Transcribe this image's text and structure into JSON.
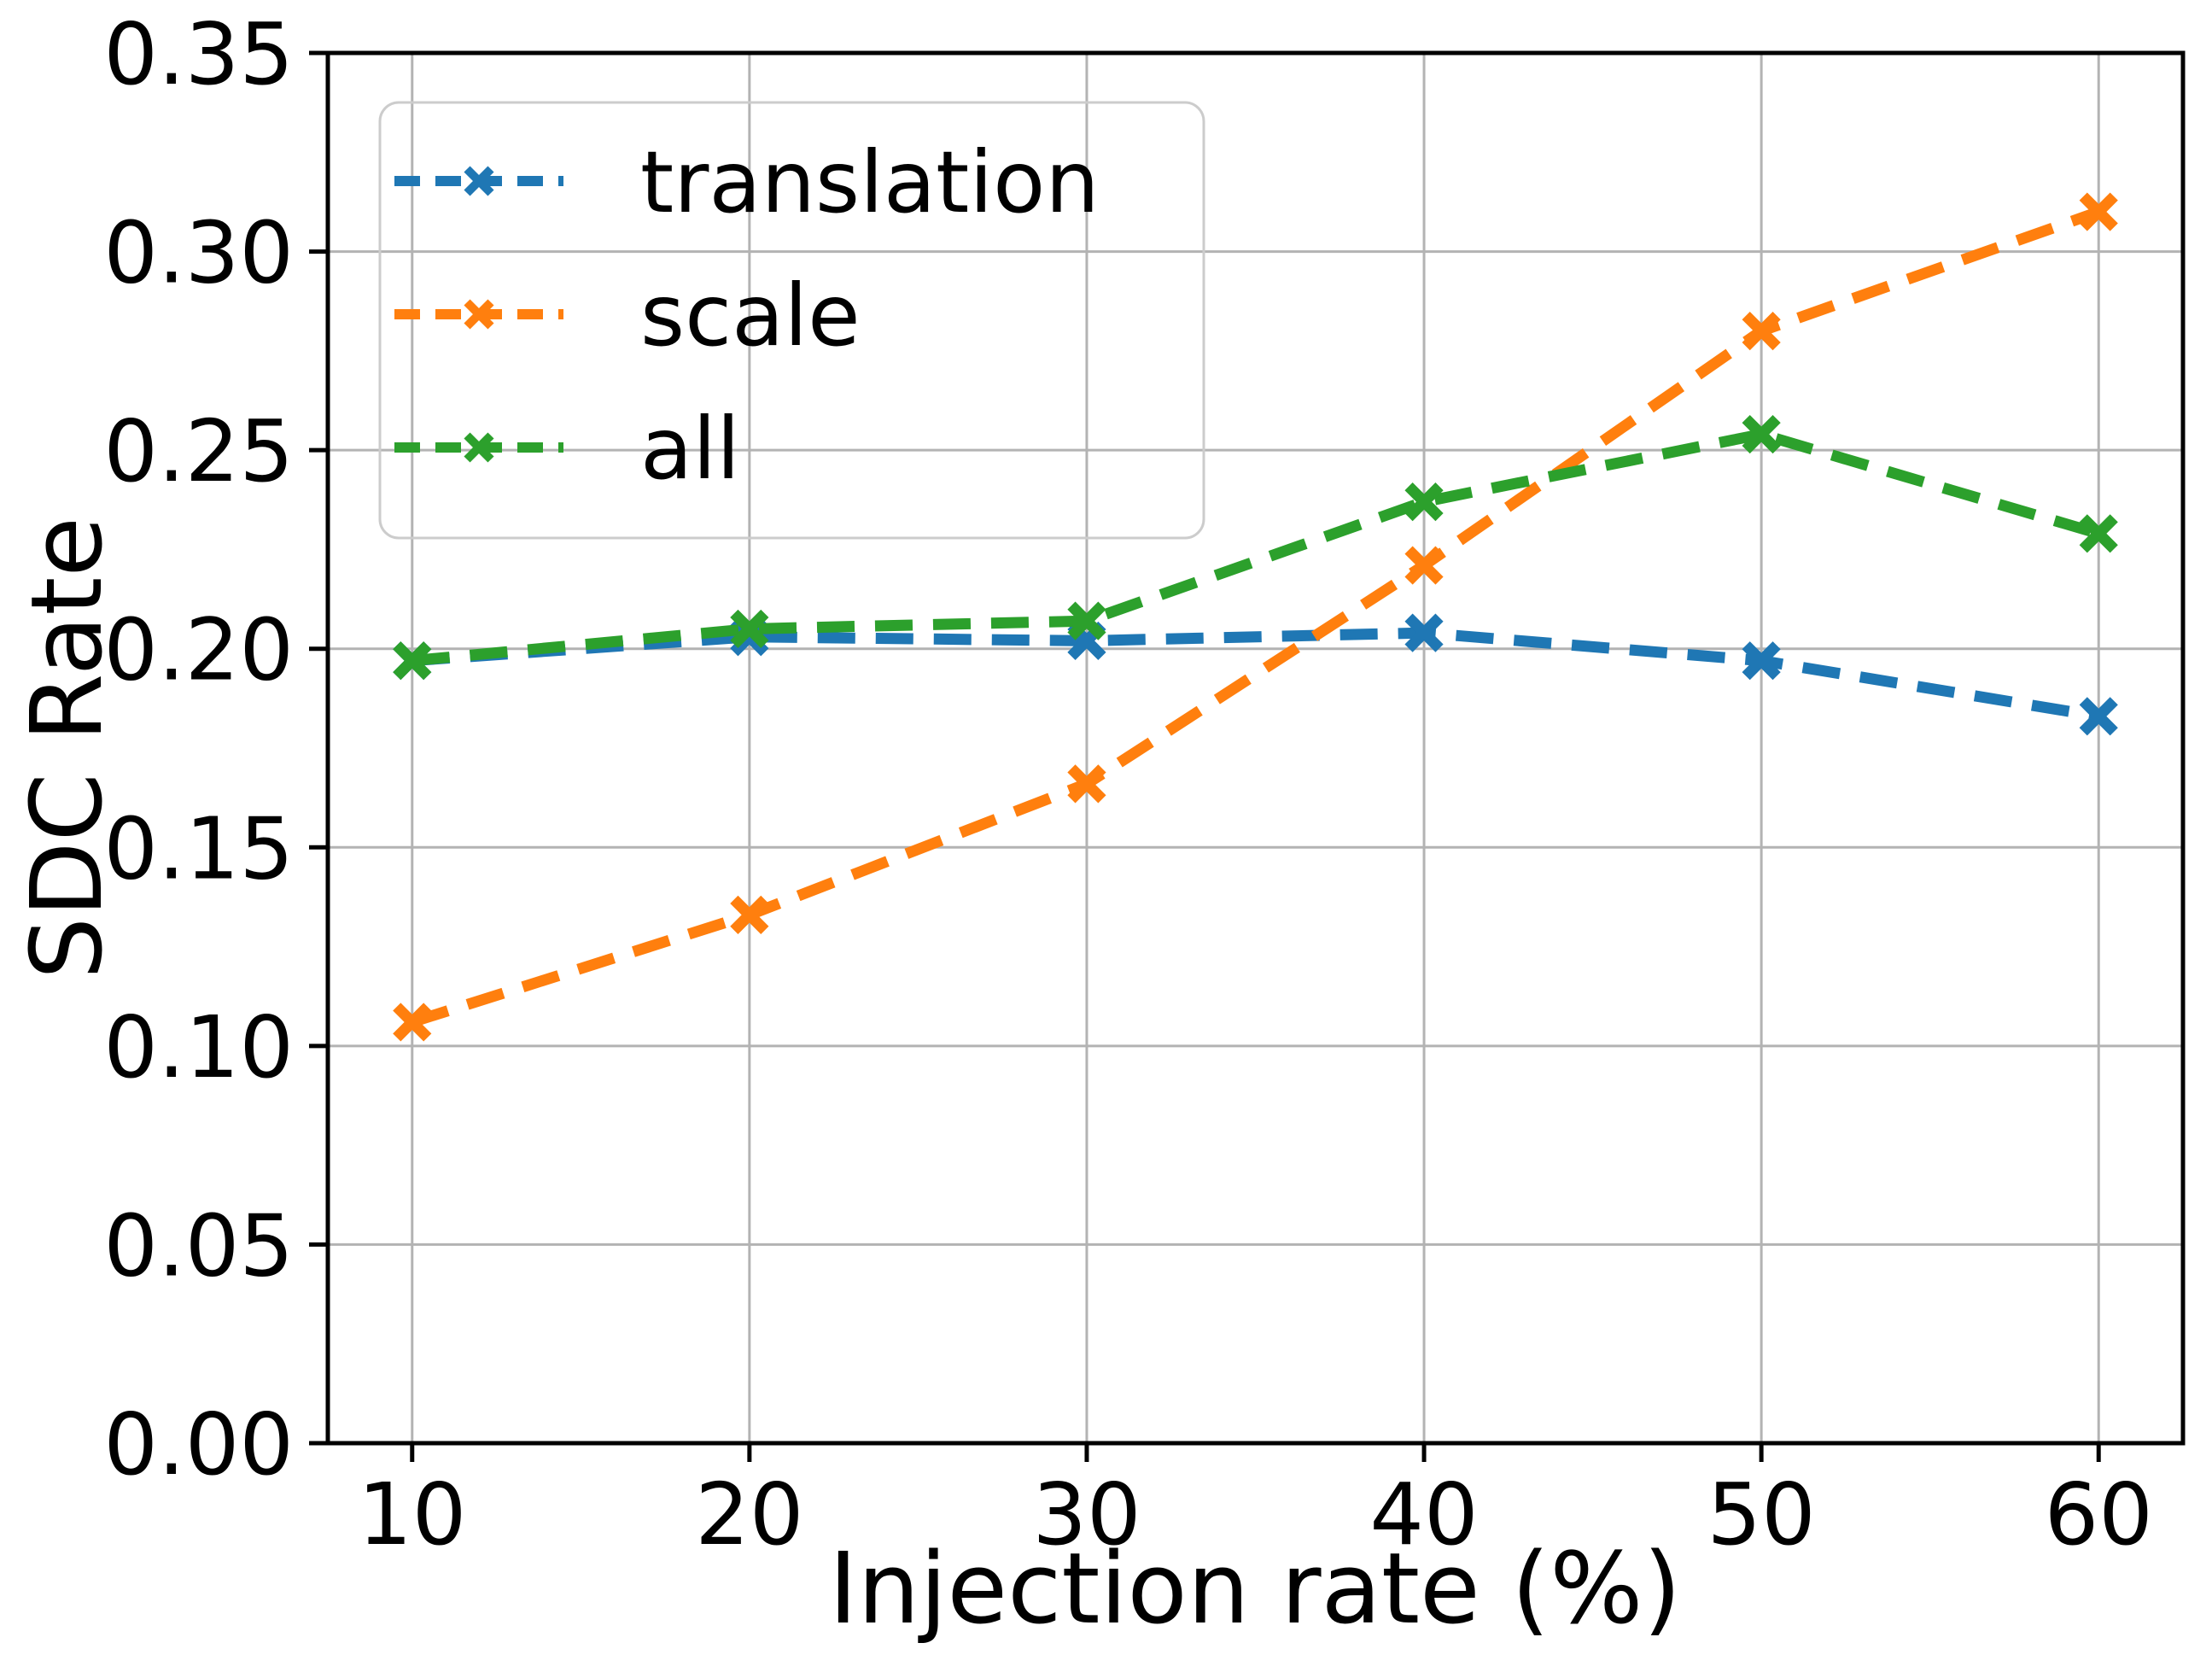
{
  "chart_data": {
    "type": "line",
    "title": "",
    "xlabel": "Injection rate (%)",
    "ylabel": "SDC Rate",
    "x": [
      10,
      20,
      30,
      40,
      50,
      60
    ],
    "series": [
      {
        "name": "translation",
        "color": "#1f77b4",
        "values": [
          0.197,
          0.203,
          0.202,
          0.204,
          0.197,
          0.183
        ]
      },
      {
        "name": "scale",
        "color": "#ff7f0e",
        "values": [
          0.106,
          0.133,
          0.166,
          0.221,
          0.28,
          0.31
        ]
      },
      {
        "name": "all",
        "color": "#2ca02c",
        "values": [
          0.197,
          0.205,
          0.207,
          0.237,
          0.254,
          0.229
        ]
      }
    ],
    "xticks": [
      10,
      20,
      30,
      40,
      50,
      60
    ],
    "yticks": [
      0.0,
      0.05,
      0.1,
      0.15,
      0.2,
      0.25,
      0.3,
      0.35
    ],
    "xlim": [
      7.5,
      62.5
    ],
    "ylim": [
      0,
      0.35
    ],
    "grid": true,
    "line_style": "dashed",
    "marker": "x",
    "legend": {
      "position": "upper-left",
      "entries": [
        "translation",
        "scale",
        "all"
      ]
    }
  },
  "colors": {
    "background": "#ffffff",
    "grid": "#b3b3b3",
    "axis": "#000000",
    "legend_border": "#cccccc"
  }
}
